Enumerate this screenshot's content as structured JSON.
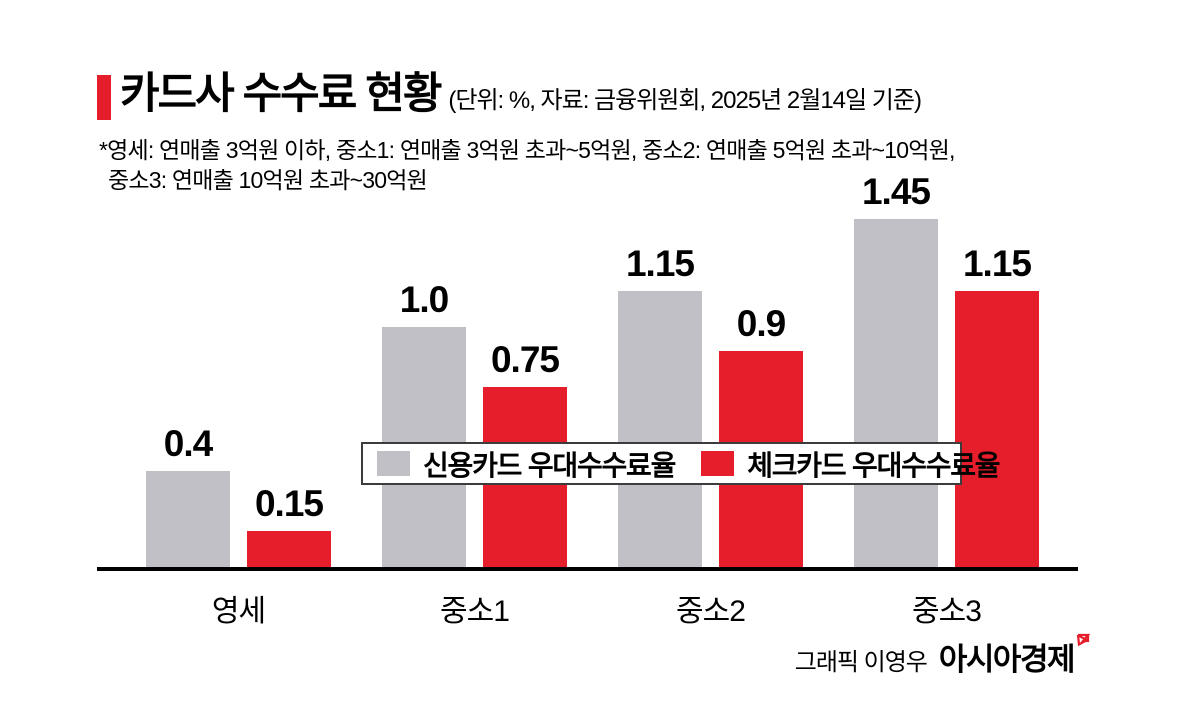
{
  "header": {
    "title": "카드사 수수료 현황",
    "subtitle": "(단위: %, 자료: 금융위원회, 2025년 2월14일 기준)",
    "footnote1": "*영세: 연매출 3억원 이하, 중소1: 연매출 3억원 초과~5억원, 중소2: 연매출 5억원 초과~10억원,",
    "footnote2": "중소3: 연매출 10억원 초과~30억원"
  },
  "chart_data": {
    "type": "bar",
    "categories": [
      "영세",
      "중소1",
      "중소2",
      "중소3"
    ],
    "series": [
      {
        "name": "신용카드 우대수수료율",
        "color": "#c1c0c6",
        "values": [
          0.4,
          1.0,
          1.15,
          1.45
        ],
        "labels": [
          "0.4",
          "1.0",
          "1.15",
          "1.45"
        ]
      },
      {
        "name": "체크카드 우대수수료율",
        "color": "#e61e2b",
        "values": [
          0.15,
          0.75,
          0.9,
          1.15
        ],
        "labels": [
          "0.15",
          "0.75",
          "0.9",
          "1.15"
        ]
      }
    ],
    "unit": "%",
    "ylim": [
      0,
      1.55
    ],
    "grid": false,
    "axis_line": true,
    "legend_position": "center-overlay",
    "value_labels": true
  },
  "footer": {
    "credit_label": "그래픽 이영우",
    "brand": "아시아경제"
  },
  "colors": {
    "accent_red": "#e61e2b",
    "bar_gray": "#c1c0c6",
    "text": "#000000",
    "legend_border": "#3c3c3c",
    "background": "#ffffff"
  }
}
